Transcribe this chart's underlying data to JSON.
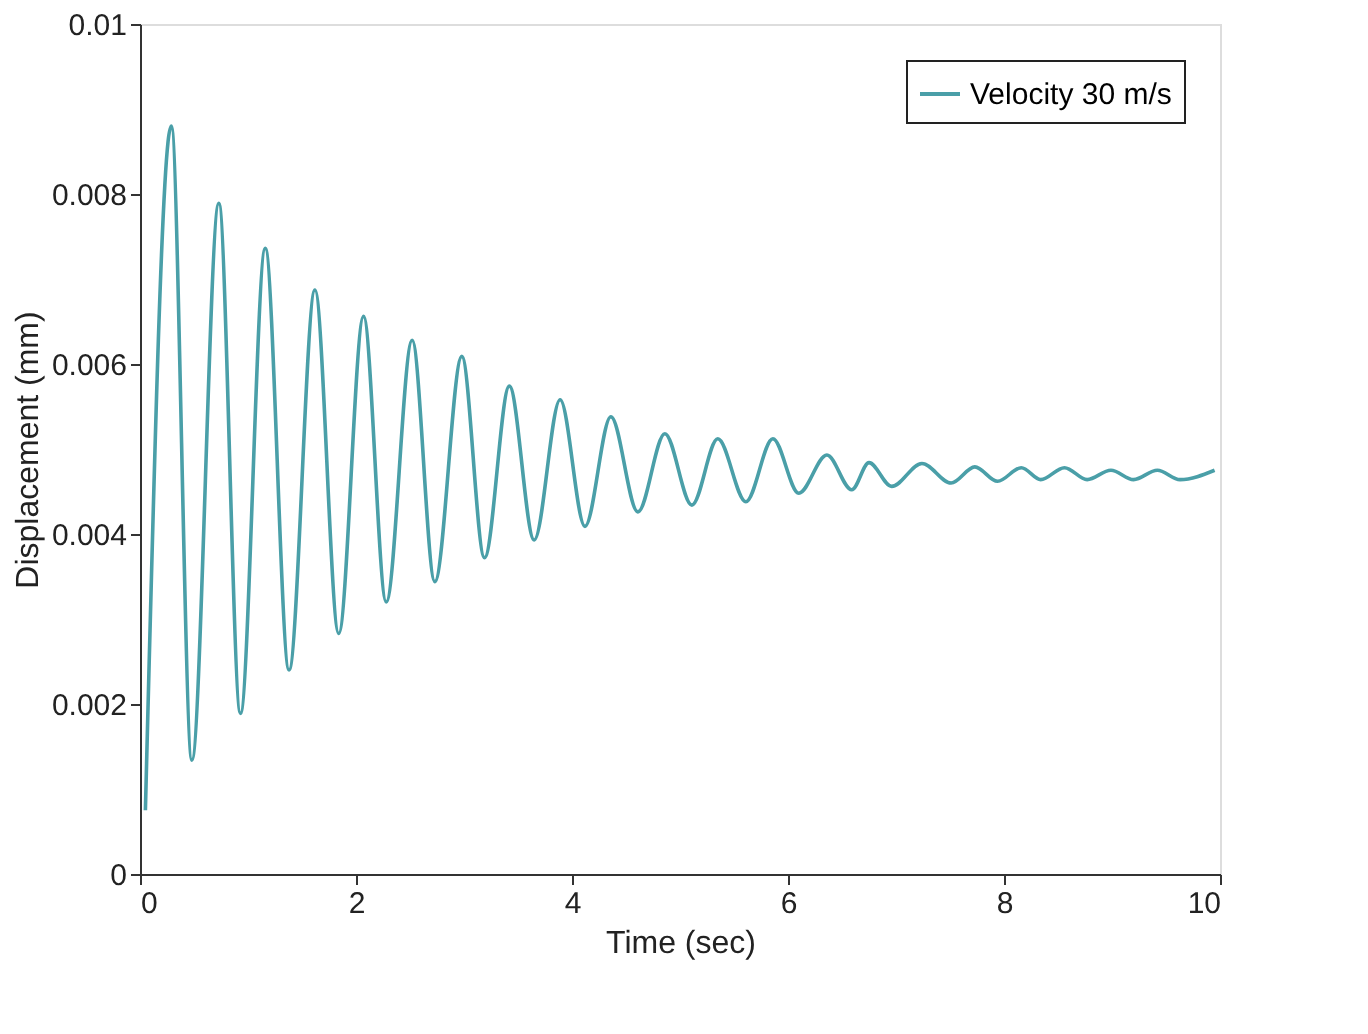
{
  "chart_data": {
    "type": "line",
    "xlabel": "Time (sec)",
    "ylabel": "Displacement (mm)",
    "series": [
      {
        "name": "Velocity 30 m/s",
        "color": "#4a9fa8",
        "x": [
          0.05,
          0.29,
          0.48,
          0.73,
          0.93,
          1.16,
          1.38,
          1.62,
          1.84,
          2.07,
          2.28,
          2.52,
          2.73,
          2.98,
          3.19,
          3.42,
          3.65,
          3.89,
          4.12,
          4.36,
          4.61,
          4.86,
          5.11,
          5.35,
          5.61,
          5.86,
          6.1,
          6.36,
          6.59,
          6.75,
          6.96,
          7.24,
          7.51,
          7.73,
          7.94,
          8.16,
          8.34,
          8.56,
          8.77,
          8.99,
          9.2,
          9.42,
          9.63,
          9.95
        ],
        "values": [
          0.00075,
          0.0088,
          0.00134,
          0.00789,
          0.00189,
          0.00736,
          0.0024,
          0.00687,
          0.00283,
          0.00656,
          0.0032,
          0.00628,
          0.00344,
          0.00609,
          0.00372,
          0.00574,
          0.00393,
          0.00558,
          0.00409,
          0.00538,
          0.00426,
          0.00518,
          0.00434,
          0.00512,
          0.00438,
          0.00512,
          0.00448,
          0.00493,
          0.00452,
          0.00484,
          0.00456,
          0.00483,
          0.0046,
          0.00479,
          0.00462,
          0.00478,
          0.00464,
          0.00478,
          0.00464,
          0.00475,
          0.00464,
          0.00475,
          0.00464,
          0.00475
        ]
      }
    ],
    "xlim": [
      0,
      10
    ],
    "xticks": [
      0,
      2,
      4,
      6,
      8,
      10
    ],
    "ylim": [
      0,
      0.01
    ],
    "yticks": [
      0,
      0.002,
      0.004,
      0.006,
      0.008,
      0.01
    ],
    "grid": false,
    "legend": "top right",
    "marker": "none",
    "line_style": "solid"
  }
}
